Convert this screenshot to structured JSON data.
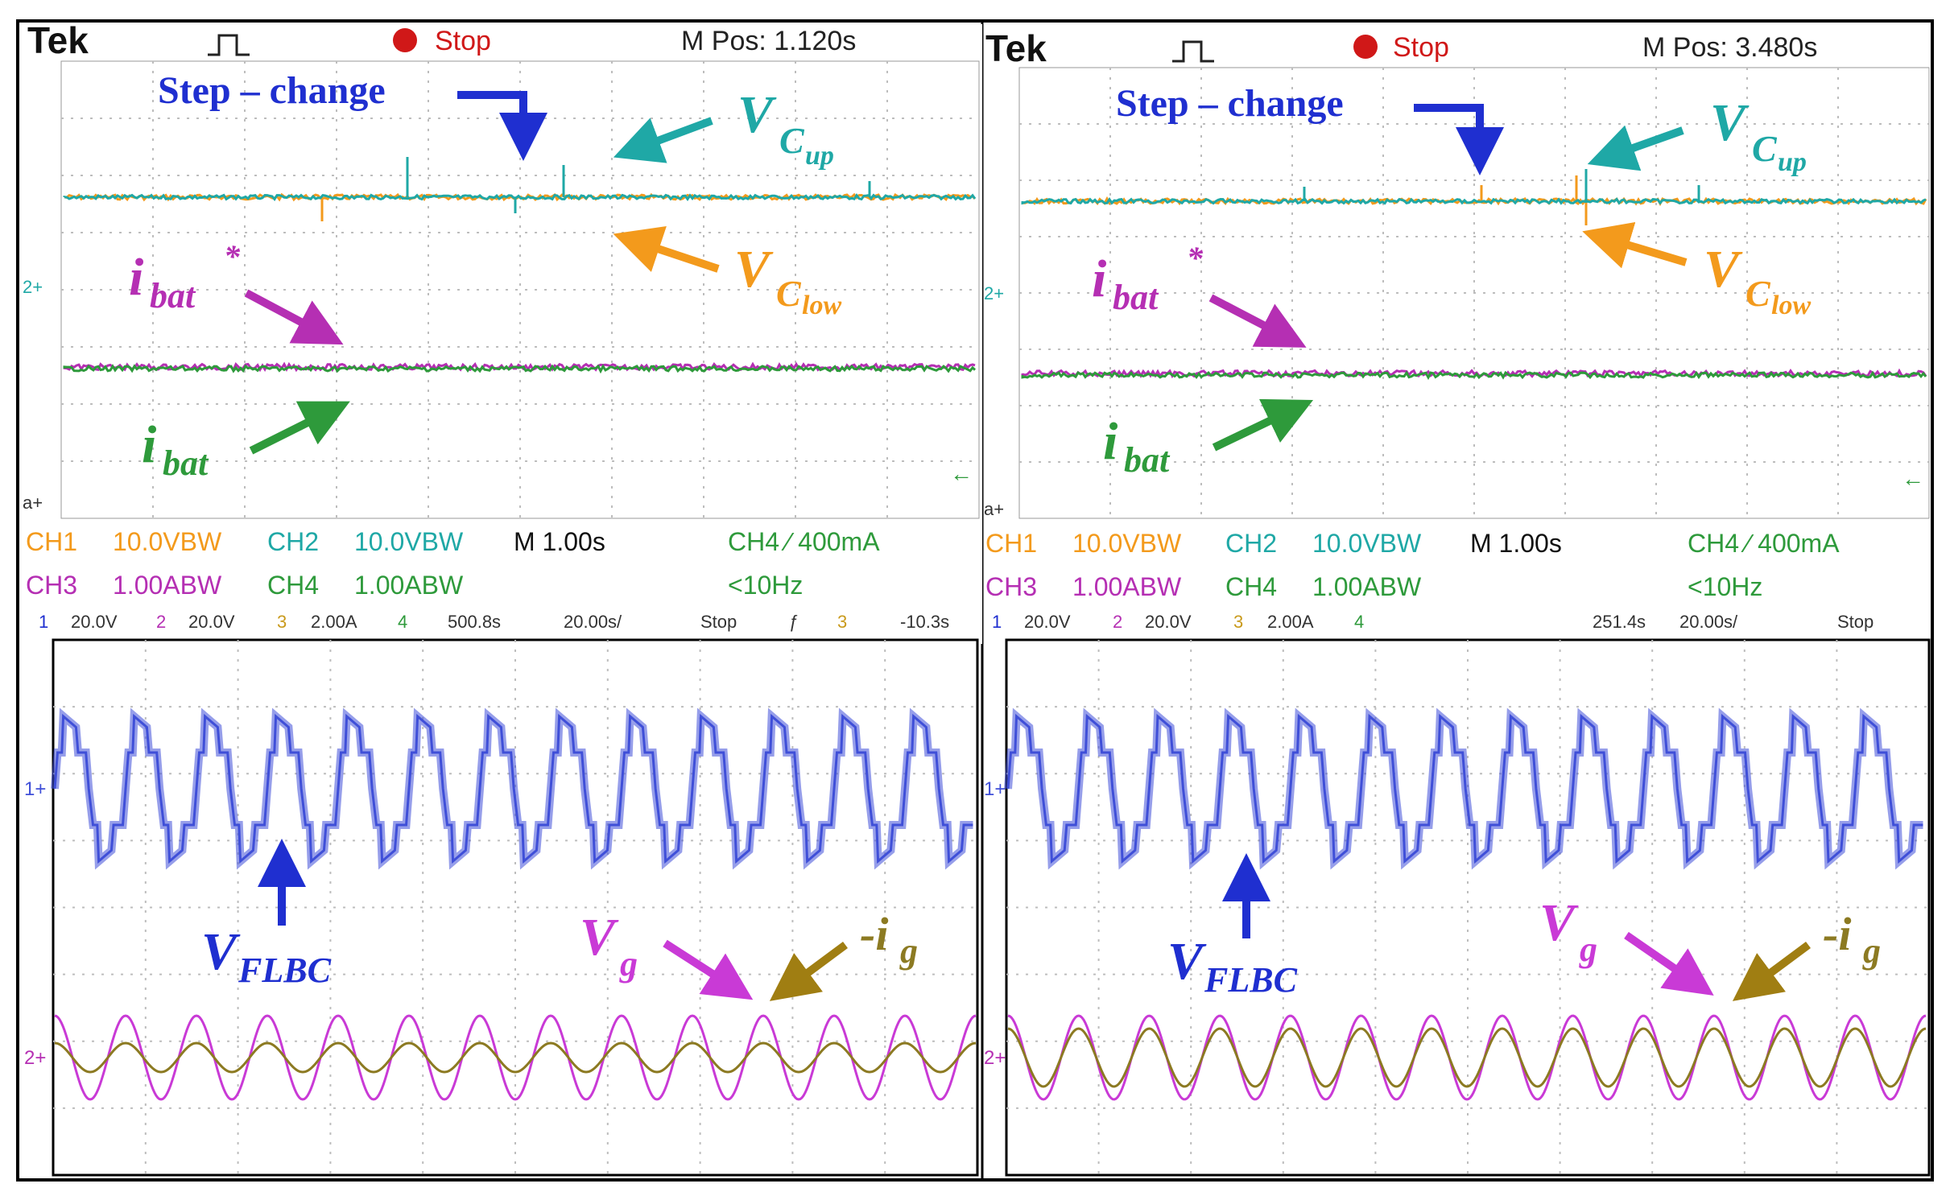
{
  "left": {
    "brand": "Tek",
    "status": "Stop",
    "mpos": "M Pos: 1.120s",
    "step_label": "Step – change",
    "v_cap": "V",
    "cup_sub": "C",
    "cup_subsub": "up",
    "clow_sub": "C",
    "clow_subsub": "low",
    "ibat": "i",
    "ibat_sub": "bat",
    "ibat_star": "*",
    "settings": {
      "ch1": "CH1",
      "ch1_val": "10.0VΒW",
      "ch2": "CH2",
      "ch2_val": "10.0VΒW",
      "time": "M 1.00s",
      "ch4_trig": "CH4 ∕ 400mA",
      "ch3": "CH3",
      "ch3_val": "1.00AΒW",
      "ch4": "CH4",
      "ch4_val": "1.00AΒW",
      "freq": "<10Hz"
    },
    "strip": [
      "1",
      "20.0V",
      "2",
      "20.0V",
      "3",
      "2.00A",
      "4",
      "500.8s",
      "20.00s/",
      "Stop",
      "ƒ",
      "3",
      "-10.3s"
    ],
    "vflbc": "V",
    "vflbc_sub": "FLBC",
    "vg": "V",
    "vg_sub": "g",
    "ig": "-i",
    "ig_sub": "g"
  },
  "right": {
    "brand": "Tek",
    "status": "Stop",
    "mpos": "M Pos: 3.480s",
    "step_label": "Step – change",
    "v_cap": "V",
    "cup_sub": "C",
    "cup_subsub": "up",
    "clow_sub": "C",
    "clow_subsub": "low",
    "ibat": "i",
    "ibat_sub": "bat",
    "ibat_star": "*",
    "settings": {
      "ch1": "CH1",
      "ch1_val": "10.0VΒW",
      "ch2": "CH2",
      "ch2_val": "10.0VΒW",
      "time": "M 1.00s",
      "ch4_trig": "CH4 ∕ 400mA",
      "ch3": "CH3",
      "ch3_val": "1.00AΒW",
      "ch4": "CH4",
      "ch4_val": "1.00AΒW",
      "freq": "<10Hz"
    },
    "strip": [
      "1",
      "20.0V",
      "2",
      "20.0V",
      "3",
      "2.00A",
      "4",
      "251.4s",
      "20.00s/",
      "Stop"
    ],
    "vflbc": "V",
    "vflbc_sub": "FLBC",
    "vg": "V",
    "vg_sub": "g",
    "ig": "-i",
    "ig_sub": "g"
  },
  "colors": {
    "ch1_orange": "#f39a1c",
    "ch2_teal": "#1fa8a6",
    "ch3_magenta": "#b52fb3",
    "ch4_green": "#2e9a3b",
    "annot_blue": "#1f2fd0",
    "annot_purple": "#8b1fa0",
    "flbc_blue": "#3f4fd8",
    "vg_magenta": "#c93ad6",
    "ig_olive": "#8c7a22",
    "grid_gray": "#bdbdbd"
  }
}
